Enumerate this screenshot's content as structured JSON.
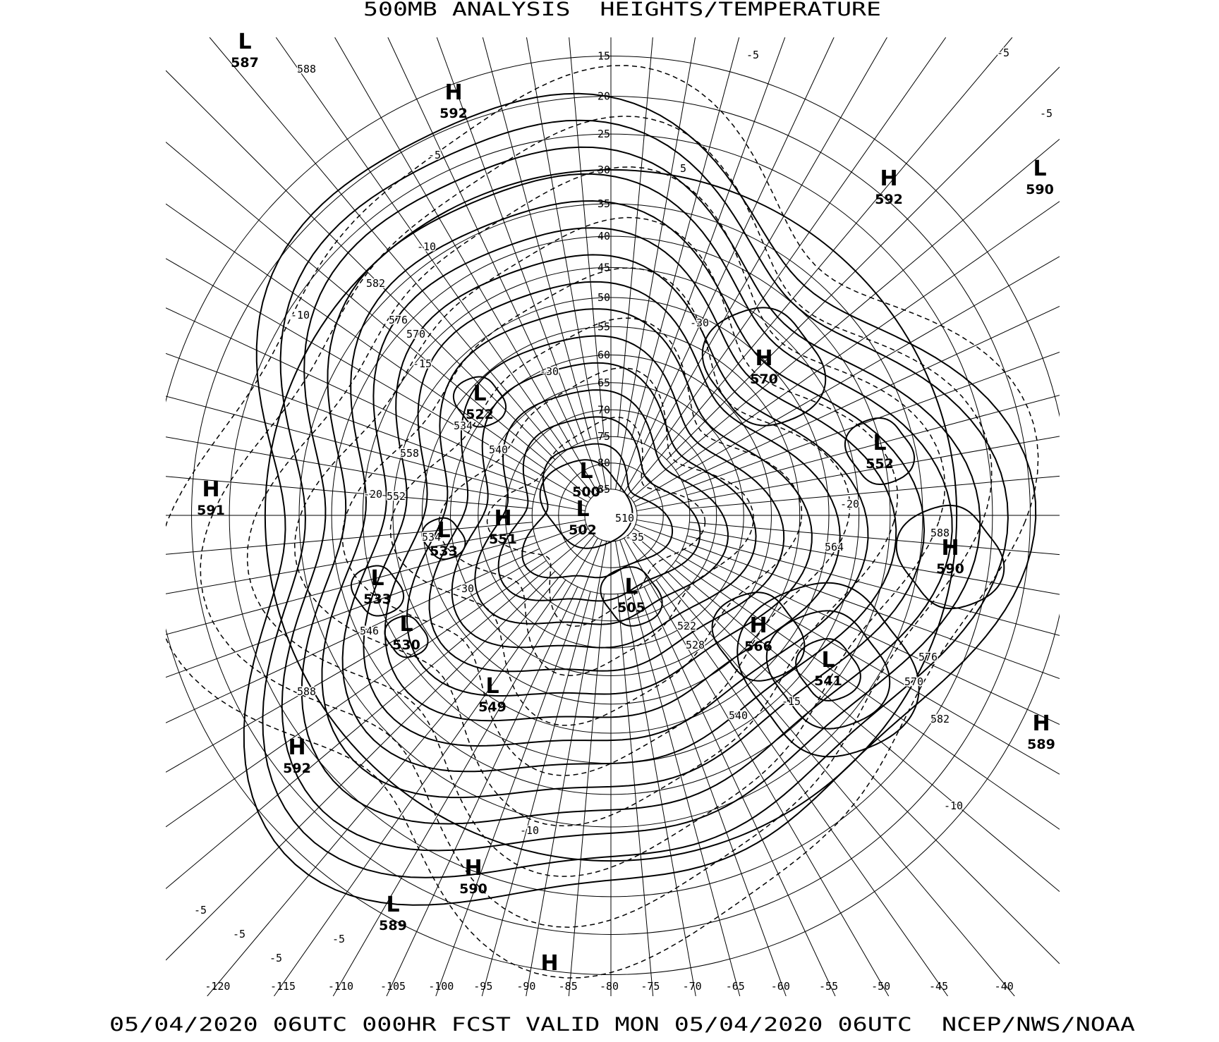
{
  "title": "500MB ANALYSIS  HEIGHTS/TEMPERATURE",
  "footer": "05/04/2020 06UTC 000HR FCST VALID MON 05/04/2020 06UTC  NCEP/NWS/NOAA",
  "map": {
    "projection": "polar stereographic",
    "line_color": "#000000",
    "background": "#ffffff",
    "height_contours": "solid",
    "temperature_contours": "dashed"
  },
  "latitude_labels": [
    "15",
    "20",
    "25",
    "30",
    "35",
    "40",
    "45",
    "50",
    "55",
    "60",
    "65",
    "70",
    "75",
    "80",
    "85"
  ],
  "longitude_labels": [
    "-120",
    "-115",
    "-110",
    "-105",
    "-100",
    "-95",
    "-90",
    "-85",
    "-80",
    "-75",
    "-70",
    "-65",
    "-60",
    "-55",
    "-50",
    "-45",
    "-40"
  ],
  "centers": [
    {
      "type": "L",
      "value": "587"
    },
    {
      "type": "H",
      "value": "592"
    },
    {
      "type": "H",
      "value": "592"
    },
    {
      "type": "L",
      "value": "590"
    },
    {
      "type": "H",
      "value": "570"
    },
    {
      "type": "L",
      "value": "522"
    },
    {
      "type": "L",
      "value": "552"
    },
    {
      "type": "H",
      "value": "591"
    },
    {
      "type": "L",
      "value": "500"
    },
    {
      "type": "L",
      "value": "502"
    },
    {
      "type": "H",
      "value": "551"
    },
    {
      "type": "L",
      "value": "533"
    },
    {
      "type": "H",
      "value": "590"
    },
    {
      "type": "L",
      "value": "533"
    },
    {
      "type": "L",
      "value": "505"
    },
    {
      "type": "L",
      "value": "530"
    },
    {
      "type": "H",
      "value": "566"
    },
    {
      "type": "L",
      "value": "541"
    },
    {
      "type": "L",
      "value": "549"
    },
    {
      "type": "H",
      "value": "589"
    },
    {
      "type": "H",
      "value": "592"
    },
    {
      "type": "H",
      "value": "590"
    },
    {
      "type": "L",
      "value": "589"
    },
    {
      "type": "H",
      "value": ""
    }
  ],
  "contour_labels": [
    "588",
    "-5",
    "5",
    "-5",
    "-5",
    "-5",
    "-10",
    "582",
    "-10",
    "576",
    "570",
    "-15",
    "-30",
    "-30",
    "534",
    "540",
    "558",
    "552",
    "-20",
    "534",
    "-30",
    "546",
    "588",
    "582",
    "-10",
    "-10",
    "-5",
    "-5",
    "-5",
    "-5",
    "510",
    "-35",
    "564",
    "588",
    "528",
    "522",
    "576",
    "570",
    "-15",
    "540",
    "-20"
  ]
}
